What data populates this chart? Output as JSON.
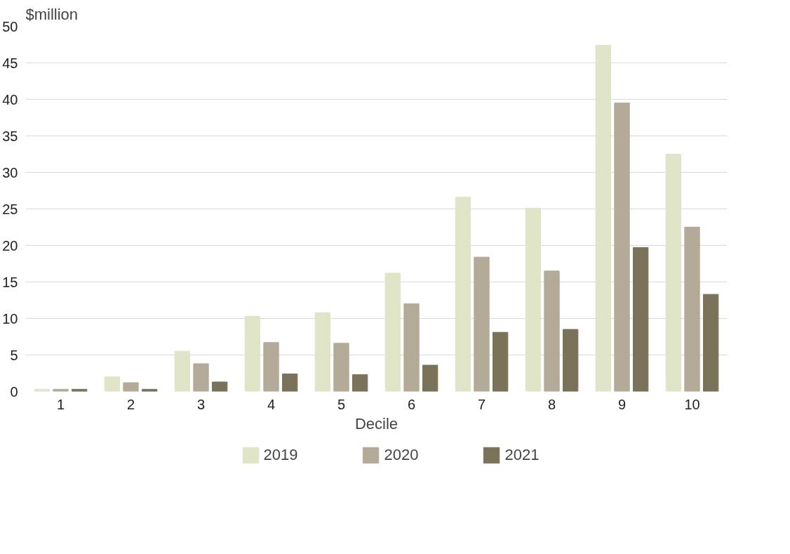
{
  "chart_data": {
    "type": "bar",
    "ylabel": "$million",
    "xlabel": "Decile",
    "categories": [
      "1",
      "2",
      "3",
      "4",
      "5",
      "6",
      "7",
      "8",
      "9",
      "10"
    ],
    "series": [
      {
        "name": "2019",
        "color": "#dfe5c6",
        "values": [
          0.3,
          2.0,
          5.5,
          10.3,
          10.8,
          16.2,
          26.6,
          25.1,
          47.4,
          32.5
        ]
      },
      {
        "name": "2020",
        "color": "#b3ab98",
        "values": [
          0.3,
          1.2,
          3.8,
          6.7,
          6.6,
          12.0,
          18.4,
          16.5,
          39.5,
          22.5
        ]
      },
      {
        "name": "2021",
        "color": "#7a735a",
        "values": [
          0.3,
          0.3,
          1.3,
          2.4,
          2.3,
          3.6,
          8.1,
          8.5,
          19.7,
          13.3
        ]
      }
    ],
    "ylim": [
      0,
      50
    ],
    "yticks": [
      0,
      5,
      10,
      15,
      20,
      25,
      30,
      35,
      40,
      45,
      50
    ],
    "grid": "y",
    "legend": "bottom"
  }
}
